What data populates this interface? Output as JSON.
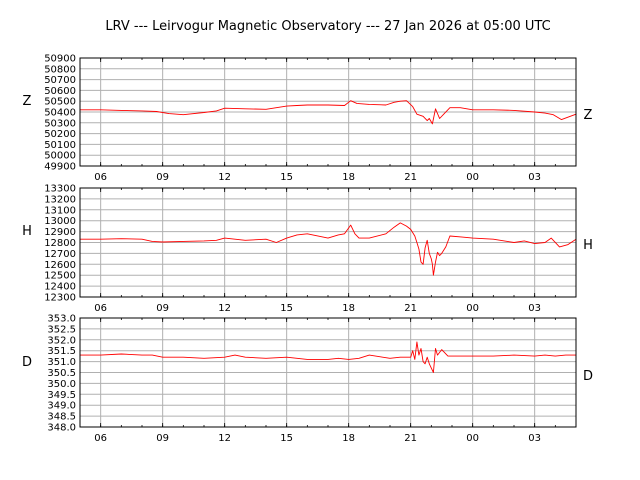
{
  "chart_data": {
    "title": "LRV --- Leirvogur Magnetic Observatory --- 27 Jan 2026 at 05:00 UTC",
    "type": "line",
    "line_color": "#ff0000",
    "grid_color": "#b0b0b0",
    "grid": true,
    "x_unit": "hours UTC from 05:00 on 26 Jan 2026",
    "xlim": [
      0,
      24
    ],
    "x_ticks": [
      {
        "pos": 1,
        "label": "06"
      },
      {
        "pos": 4,
        "label": "09"
      },
      {
        "pos": 7,
        "label": "12"
      },
      {
        "pos": 10,
        "label": "15"
      },
      {
        "pos": 13,
        "label": "18"
      },
      {
        "pos": 16,
        "label": "21"
      },
      {
        "pos": 19,
        "label": "00"
      },
      {
        "pos": 22,
        "label": "03"
      }
    ],
    "panels": [
      {
        "component": "Z",
        "ylim": [
          49900,
          50900
        ],
        "y_ticks": [
          "49900",
          "50000",
          "50100",
          "50200",
          "50300",
          "50400",
          "50500",
          "50600",
          "50700",
          "50800",
          "50900"
        ],
        "x": [
          0,
          1,
          2,
          3,
          3.7,
          4.3,
          5,
          6,
          6.6,
          7,
          8,
          9,
          10,
          10.5,
          11,
          12,
          12.8,
          13.1,
          13.4,
          14,
          14.8,
          15.2,
          15.5,
          15.8,
          16.1,
          16.3,
          16.6,
          16.8,
          16.9,
          17.05,
          17.2,
          17.4,
          17.6,
          17.9,
          18.4,
          19,
          20,
          21,
          22,
          22.5,
          22.9,
          23.3,
          24
        ],
        "values": [
          50420,
          50420,
          50415,
          50410,
          50405,
          50385,
          50375,
          50395,
          50410,
          50435,
          50430,
          50425,
          50455,
          50460,
          50465,
          50465,
          50460,
          50505,
          50480,
          50470,
          50465,
          50490,
          50500,
          50505,
          50450,
          50380,
          50360,
          50320,
          50340,
          50290,
          50430,
          50340,
          50380,
          50440,
          50440,
          50420,
          50420,
          50415,
          50400,
          50390,
          50375,
          50330,
          50380
        ]
      },
      {
        "component": "H",
        "ylim": [
          12300,
          13300
        ],
        "y_ticks": [
          "12300",
          "12400",
          "12500",
          "12600",
          "12700",
          "12800",
          "12900",
          "13000",
          "13100",
          "13200",
          "13300"
        ],
        "x": [
          0,
          1,
          2,
          3,
          3.5,
          4,
          5,
          6,
          6.6,
          7,
          7.5,
          8,
          9,
          9.5,
          10,
          10.5,
          11,
          12,
          12.5,
          12.8,
          13.1,
          13.3,
          13.5,
          14,
          14.8,
          15.2,
          15.5,
          15.8,
          16.0,
          16.2,
          16.3,
          16.4,
          16.5,
          16.6,
          16.7,
          16.8,
          16.9,
          17.0,
          17.05,
          17.1,
          17.2,
          17.3,
          17.4,
          17.5,
          17.7,
          17.9,
          18.5,
          19,
          20,
          21,
          21.5,
          22,
          22.5,
          22.8,
          23.2,
          23.6,
          24
        ],
        "values": [
          12830,
          12830,
          12835,
          12830,
          12810,
          12805,
          12810,
          12815,
          12820,
          12840,
          12830,
          12820,
          12830,
          12800,
          12840,
          12870,
          12880,
          12840,
          12870,
          12880,
          12960,
          12880,
          12840,
          12840,
          12880,
          12940,
          12980,
          12950,
          12920,
          12860,
          12800,
          12740,
          12620,
          12600,
          12750,
          12820,
          12700,
          12650,
          12600,
          12500,
          12620,
          12710,
          12680,
          12700,
          12760,
          12860,
          12850,
          12840,
          12830,
          12800,
          12815,
          12790,
          12800,
          12840,
          12760,
          12780,
          12830
        ]
      },
      {
        "component": "D",
        "ylim": [
          348.0,
          353.0
        ],
        "y_ticks": [
          "348.0",
          "348.5",
          "349.0",
          "349.5",
          "350.0",
          "350.5",
          "351.0",
          "351.5",
          "352.0",
          "352.5",
          "353.0"
        ],
        "x": [
          0,
          1,
          2,
          3,
          3.5,
          4,
          5,
          6,
          7,
          7.5,
          8,
          9,
          10,
          10.5,
          11,
          12,
          12.5,
          13,
          13.5,
          14,
          15,
          15.5,
          16,
          16.1,
          16.2,
          16.3,
          16.4,
          16.5,
          16.6,
          16.7,
          16.8,
          16.9,
          17.0,
          17.1,
          17.2,
          17.3,
          17.5,
          17.8,
          18.5,
          19,
          20,
          21,
          22,
          22.5,
          23,
          23.5,
          24
        ],
        "values": [
          351.3,
          351.3,
          351.35,
          351.3,
          351.3,
          351.2,
          351.2,
          351.15,
          351.2,
          351.3,
          351.2,
          351.15,
          351.2,
          351.15,
          351.1,
          351.1,
          351.15,
          351.1,
          351.15,
          351.3,
          351.15,
          351.2,
          351.2,
          351.5,
          351.1,
          351.9,
          351.3,
          351.6,
          351.0,
          350.9,
          351.2,
          350.9,
          350.7,
          350.5,
          351.6,
          351.3,
          351.55,
          351.25,
          351.25,
          351.25,
          351.25,
          351.3,
          351.25,
          351.3,
          351.25,
          351.3,
          351.3
        ]
      }
    ]
  }
}
